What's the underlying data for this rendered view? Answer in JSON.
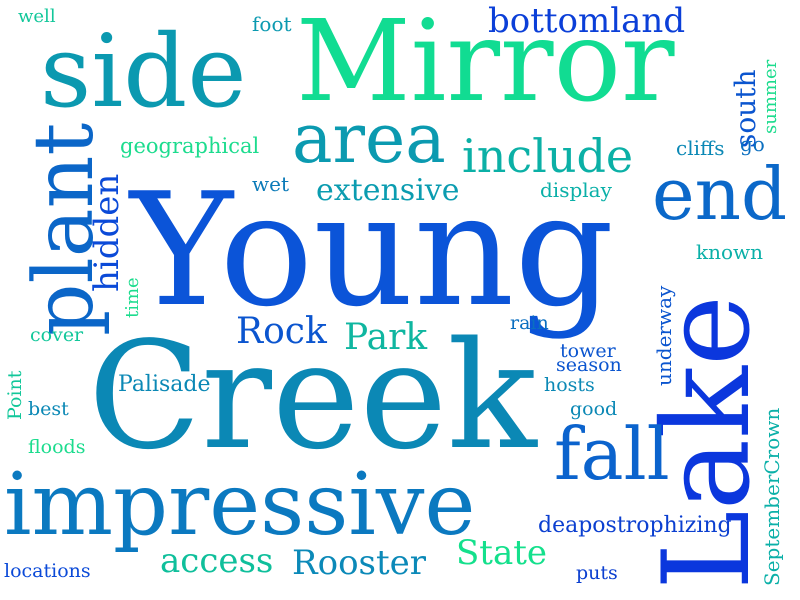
{
  "word_cloud": {
    "words": [
      {
        "text": "Young",
        "color": "#0b54d8"
      },
      {
        "text": "Creek",
        "color": "#0b88b5"
      },
      {
        "text": "Mirror",
        "color": "#11dc92"
      },
      {
        "text": "Lake",
        "color": "#0b37dd"
      },
      {
        "text": "impressive",
        "color": "#0b79c0"
      },
      {
        "text": "side",
        "color": "#0b99b0"
      },
      {
        "text": "plant",
        "color": "#0b66c8"
      },
      {
        "text": "area",
        "color": "#0b9ab0"
      },
      {
        "text": "end",
        "color": "#0b68c9"
      },
      {
        "text": "fall",
        "color": "#0b63cd"
      },
      {
        "text": "include",
        "color": "#0bb0a6"
      },
      {
        "text": "bottomland",
        "color": "#0b3fd8"
      },
      {
        "text": "extensive",
        "color": "#0b9cb0"
      },
      {
        "text": "Rooster",
        "color": "#0b89b8"
      },
      {
        "text": "access",
        "color": "#0fbf9b"
      },
      {
        "text": "State",
        "color": "#14e08c"
      },
      {
        "text": "Park",
        "color": "#0fb6a0"
      },
      {
        "text": "Rock",
        "color": "#0b55cf"
      },
      {
        "text": "hidden",
        "color": "#0b4ad8"
      },
      {
        "text": "south",
        "color": "#0b55cf"
      },
      {
        "text": "deapostrophizing",
        "color": "#0b3fd0"
      },
      {
        "text": "Palisade",
        "color": "#0b88b5"
      },
      {
        "text": "SeptemberCrown",
        "color": "#0bb0a8"
      },
      {
        "text": "geographical",
        "color": "#1cdc8e"
      },
      {
        "text": "display",
        "color": "#0bb0a8"
      },
      {
        "text": "known",
        "color": "#0bb0a8"
      },
      {
        "text": "underway",
        "color": "#0b55cf"
      },
      {
        "text": "summer",
        "color": "#1cdc8e"
      },
      {
        "text": "cliffs",
        "color": "#0b88b5"
      },
      {
        "text": "go",
        "color": "#0b6fc0"
      },
      {
        "text": "wet",
        "color": "#0b7ab8"
      },
      {
        "text": "foot",
        "color": "#0b99b0"
      },
      {
        "text": "well",
        "color": "#12c79a"
      },
      {
        "text": "time",
        "color": "#1cdc8e"
      },
      {
        "text": "cover",
        "color": "#12c79a"
      },
      {
        "text": "Point",
        "color": "#12c79a"
      },
      {
        "text": "best",
        "color": "#0b88b5"
      },
      {
        "text": "floods",
        "color": "#1cdc8e"
      },
      {
        "text": "locations",
        "color": "#0b4ad8"
      },
      {
        "text": "rain",
        "color": "#0b6fc0"
      },
      {
        "text": "tower",
        "color": "#0b55cf"
      },
      {
        "text": "season",
        "color": "#0b55cf"
      },
      {
        "text": "hosts",
        "color": "#0b88b5"
      },
      {
        "text": "good",
        "color": "#0b88b5"
      },
      {
        "text": "puts",
        "color": "#0b3fd0"
      }
    ]
  }
}
